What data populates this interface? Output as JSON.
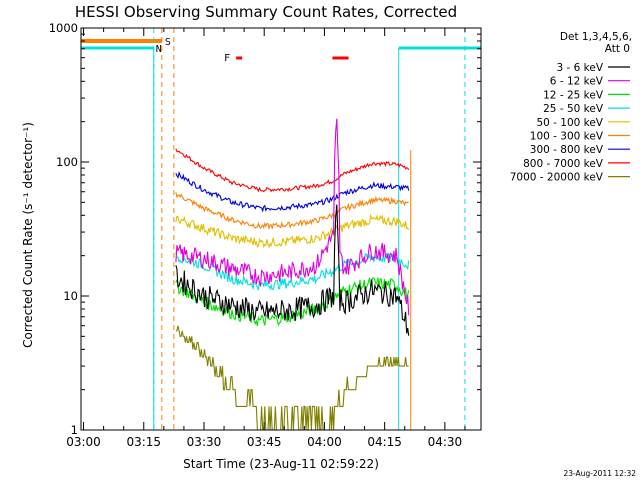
{
  "chart_data": {
    "type": "line",
    "title": "HESSI Observing Summary Count Rates, Corrected",
    "ylabel": "Corrected Count Rate (s⁻¹ detector⁻¹)",
    "xlabel": "Start Time (23-Aug-11 02:59:22)",
    "y_scale": "log",
    "ylim": [
      1,
      1000
    ],
    "xlim": [
      "02:59:22",
      "04:39:00"
    ],
    "x_ticks": [
      "03:00",
      "03:15",
      "03:30",
      "03:45",
      "04:00",
      "04:15",
      "04:30"
    ],
    "y_ticks": [
      "1",
      "10",
      "100",
      "1000"
    ],
    "legend_header": [
      "Det 1,3,4,5,6,",
      "Att 0"
    ],
    "legend_position": "right",
    "timestamp": "23-Aug-2011 12:32",
    "annotations": {
      "saa_flag": "S",
      "night_flag": "N",
      "flare_flag": "F",
      "colors": {
        "saa": "#ff8000",
        "night": "#00e0e0",
        "flare": "#ff0000"
      },
      "saa_bars": [
        [
          "02:59:22",
          "03:19:30"
        ]
      ],
      "night_bars": [
        [
          "02:59:22",
          "03:17:30"
        ],
        [
          "04:18:30",
          "04:39:00"
        ]
      ],
      "flare_bars": [
        [
          "03:38:00",
          "03:39:30"
        ],
        [
          "04:02:00",
          "04:06:00"
        ]
      ],
      "saa_lines": [
        "03:19:30",
        "03:22:30"
      ],
      "night_lines": [
        "03:17:30",
        "04:35:00"
      ],
      "data_gap_lines": [
        "04:18:30",
        "04:21:30"
      ]
    },
    "times": [
      "03:23",
      "03:30",
      "03:37",
      "03:44",
      "03:51",
      "03:58",
      "04:02",
      "04:05",
      "04:12",
      "04:18",
      "04:21"
    ],
    "series": [
      {
        "name": "3 - 6 keV",
        "color": "#000000",
        "values": [
          14,
          10,
          8.5,
          7.5,
          7.8,
          8.5,
          10,
          9,
          11,
          10,
          5.5
        ]
      },
      {
        "name": "6 - 12 keV",
        "color": "#e000e0",
        "values": [
          21,
          19,
          16,
          14,
          15,
          17,
          28,
          16,
          22,
          20,
          8
        ]
      },
      {
        "name": "12 - 25 keV",
        "color": "#00e000",
        "values": [
          12,
          9,
          7.5,
          6.5,
          7,
          8,
          9.5,
          11,
          12.5,
          12,
          10
        ]
      },
      {
        "name": "25 - 50 keV",
        "color": "#00e0e0",
        "values": [
          20,
          17,
          13.5,
          12,
          12.5,
          13.5,
          15.5,
          17,
          19.5,
          19,
          17
        ]
      },
      {
        "name": "50 - 100 keV",
        "color": "#e0c000",
        "values": [
          38,
          32,
          27,
          25,
          25.5,
          27,
          30,
          33,
          37,
          36,
          33
        ]
      },
      {
        "name": "100 - 300 keV",
        "color": "#ff8000",
        "values": [
          58,
          45,
          37,
          33,
          34,
          36.5,
          40,
          45,
          52,
          51,
          48
        ]
      },
      {
        "name": "300 - 800 keV",
        "color": "#0000e0",
        "values": [
          82,
          62,
          50,
          45,
          46,
          48.5,
          53,
          59,
          67,
          65,
          63
        ]
      },
      {
        "name": "800 - 7000 keV",
        "color": "#ff0000",
        "values": [
          125,
          90,
          70,
          62,
          63,
          66.5,
          72,
          82,
          98,
          96,
          90
        ]
      },
      {
        "name": "7000 - 20000 keV",
        "color": "#808000",
        "values": [
          5.5,
          3.5,
          1.8,
          1.2,
          1,
          1,
          1,
          1.8,
          3,
          3.2,
          3
        ]
      }
    ],
    "spikes": [
      {
        "series": "6 - 12 keV",
        "time": "04:03",
        "value": 240
      },
      {
        "series": "3 - 6 keV",
        "time": "04:03",
        "value": 55
      }
    ]
  }
}
